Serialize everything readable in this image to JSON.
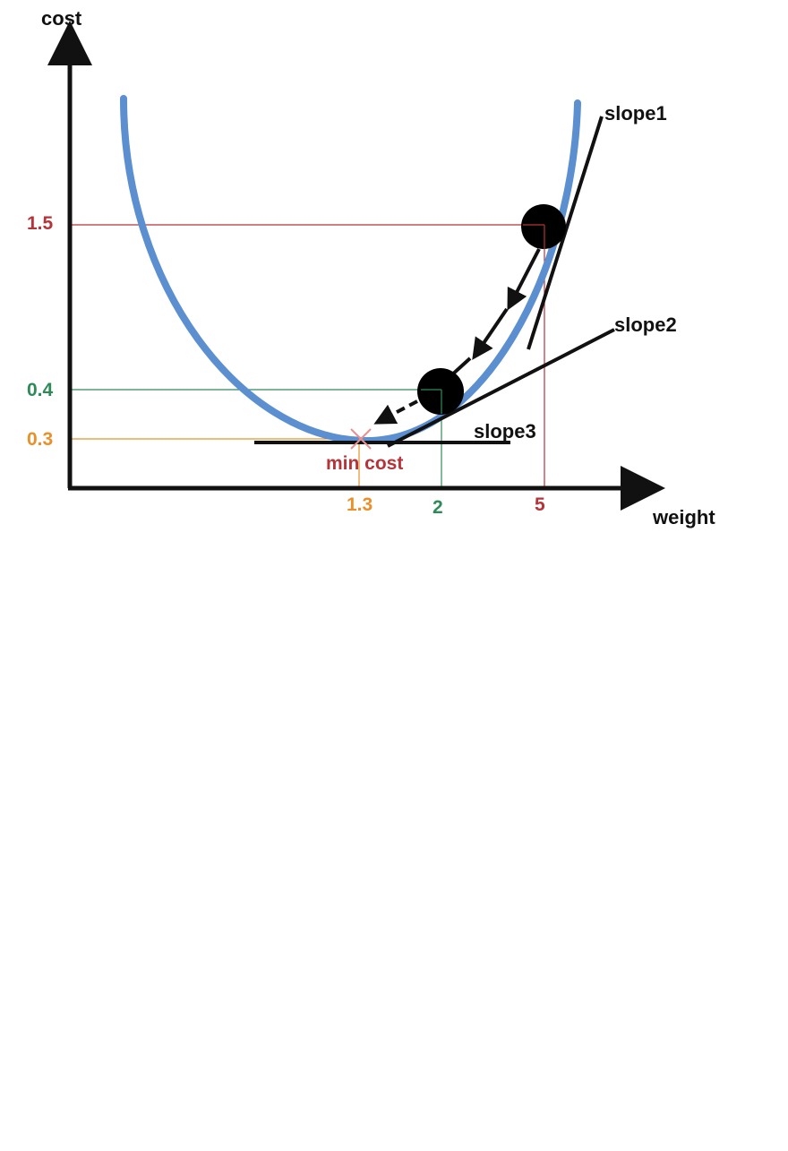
{
  "axes": {
    "y_label": "cost",
    "x_label": "weight"
  },
  "y_ticks": [
    {
      "label": "1.5",
      "color": "#b5343a"
    },
    {
      "label": "0.4",
      "color": "#2e8b57"
    },
    {
      "label": "0.3",
      "color": "#e8902a"
    }
  ],
  "x_ticks": [
    {
      "label": "1.3",
      "color": "#e8902a"
    },
    {
      "label": "2",
      "color": "#2e8b57"
    },
    {
      "label": "5",
      "color": "#b5343a"
    }
  ],
  "tangents": {
    "slope1": "slope1",
    "slope2": "slope2",
    "slope3": "slope3"
  },
  "minimum": {
    "label": "min cost",
    "color": "#b5343a"
  },
  "colors": {
    "curve": "#5b8fd0",
    "axis": "#111111",
    "ball": "#000000"
  }
}
